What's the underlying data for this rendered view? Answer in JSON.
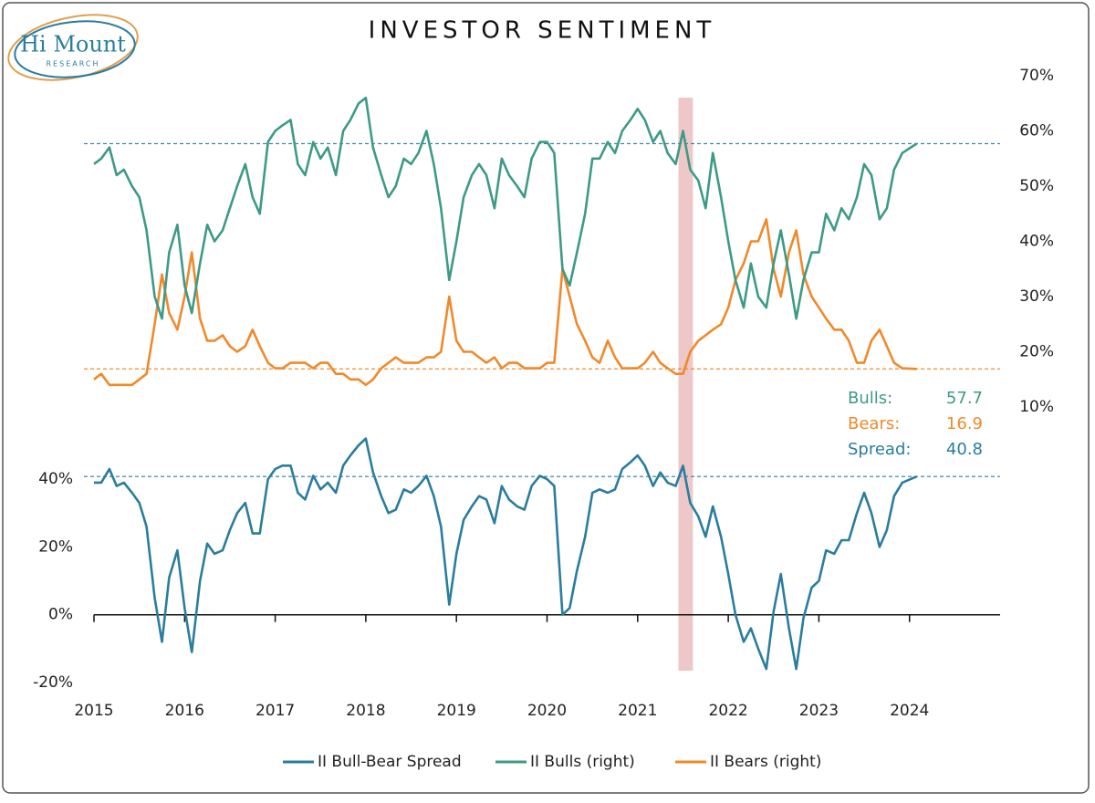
{
  "logo": {
    "name": "Hi Mount",
    "tagline": "RESEARCH"
  },
  "chart_data": {
    "type": "line",
    "title": "INVESTOR SENTIMENT",
    "x": [
      2015.0,
      2015.08,
      2015.17,
      2015.25,
      2015.33,
      2015.42,
      2015.5,
      2015.58,
      2015.67,
      2015.75,
      2015.83,
      2015.92,
      2016.0,
      2016.08,
      2016.17,
      2016.25,
      2016.33,
      2016.42,
      2016.5,
      2016.58,
      2016.67,
      2016.75,
      2016.83,
      2016.92,
      2017.0,
      2017.08,
      2017.17,
      2017.25,
      2017.33,
      2017.42,
      2017.5,
      2017.58,
      2017.67,
      2017.75,
      2017.83,
      2017.92,
      2018.0,
      2018.08,
      2018.17,
      2018.25,
      2018.33,
      2018.42,
      2018.5,
      2018.58,
      2018.67,
      2018.75,
      2018.83,
      2018.92,
      2019.0,
      2019.08,
      2019.17,
      2019.25,
      2019.33,
      2019.42,
      2019.5,
      2019.58,
      2019.67,
      2019.75,
      2019.83,
      2019.92,
      2020.0,
      2020.08,
      2020.17,
      2020.25,
      2020.33,
      2020.42,
      2020.5,
      2020.58,
      2020.67,
      2020.75,
      2020.83,
      2020.92,
      2021.0,
      2021.08,
      2021.17,
      2021.25,
      2021.33,
      2021.42,
      2021.5,
      2021.58,
      2021.67,
      2021.75,
      2021.83,
      2021.92,
      2022.0,
      2022.08,
      2022.17,
      2022.25,
      2022.33,
      2022.42,
      2022.5,
      2022.58,
      2022.67,
      2022.75,
      2022.83,
      2022.92,
      2023.0,
      2023.08,
      2023.17,
      2023.25,
      2023.33,
      2023.42,
      2023.5,
      2023.58,
      2023.67,
      2023.75,
      2023.83,
      2023.92,
      2024.08
    ],
    "series": [
      {
        "name": "II Bull-Bear Spread",
        "color": "#2a7d9e",
        "axis": "y",
        "values": [
          39,
          39,
          43,
          38,
          39,
          36,
          33,
          26,
          5,
          -8,
          11,
          19,
          2,
          -11,
          10,
          21,
          18,
          19,
          25,
          30,
          33,
          24,
          24,
          40,
          43,
          44,
          44,
          36,
          34,
          41,
          37,
          39,
          36,
          44,
          47,
          50,
          52,
          42,
          35,
          30,
          31,
          37,
          36,
          38,
          41,
          35,
          26,
          3,
          18,
          28,
          32,
          35,
          34,
          27,
          38,
          34,
          32,
          31,
          38,
          41,
          40,
          38,
          0,
          2,
          13,
          23,
          36,
          37,
          36,
          37,
          43,
          45,
          47,
          44,
          38,
          42,
          39,
          38,
          44,
          33,
          29,
          23,
          32,
          23,
          12,
          0,
          -8,
          -4,
          -10,
          -16,
          1,
          12,
          -4,
          -16,
          -1,
          8,
          10,
          19,
          18,
          22,
          22,
          30,
          36,
          30,
          20,
          25,
          35,
          39,
          40.8
        ]
      },
      {
        "name": "II Bulls (right)",
        "color": "#3d9a86",
        "axis": "y2",
        "values": [
          54,
          55,
          57,
          52,
          53,
          50,
          48,
          42,
          30,
          26,
          38,
          43,
          32,
          27,
          36,
          43,
          40,
          42,
          46,
          50,
          54,
          48,
          45,
          58,
          60,
          61,
          62,
          54,
          52,
          58,
          55,
          57,
          52,
          60,
          62,
          65,
          66,
          57,
          52,
          48,
          50,
          55,
          54,
          56,
          60,
          54,
          46,
          33,
          40,
          48,
          52,
          54,
          52,
          46,
          55,
          52,
          50,
          48,
          55,
          58,
          58,
          56,
          35,
          32,
          38,
          45,
          55,
          55,
          58,
          56,
          60,
          62,
          64,
          62,
          58,
          60,
          56,
          54,
          60,
          53,
          51,
          46,
          56,
          48,
          40,
          33,
          28,
          36,
          30,
          28,
          36,
          42,
          34,
          26,
          33,
          38,
          38,
          45,
          42,
          46,
          44,
          48,
          54,
          52,
          44,
          46,
          53,
          56,
          57.7
        ]
      },
      {
        "name": "II Bears (right)",
        "color": "#f0892a",
        "axis": "y2",
        "values": [
          15,
          16,
          14,
          14,
          14,
          14,
          15,
          16,
          25,
          34,
          27,
          24,
          30,
          38,
          26,
          22,
          22,
          23,
          21,
          20,
          21,
          24,
          21,
          18,
          17,
          17,
          18,
          18,
          18,
          17,
          18,
          18,
          16,
          16,
          15,
          15,
          14,
          15,
          17,
          18,
          19,
          18,
          18,
          18,
          19,
          19,
          20,
          30,
          22,
          20,
          20,
          19,
          18,
          19,
          17,
          18,
          18,
          17,
          17,
          17,
          18,
          18,
          35,
          30,
          25,
          22,
          19,
          18,
          22,
          19,
          17,
          17,
          17,
          18,
          20,
          18,
          17,
          16,
          16,
          20,
          22,
          23,
          24,
          25,
          28,
          33,
          36,
          40,
          40,
          44,
          35,
          30,
          38,
          42,
          34,
          30,
          28,
          26,
          24,
          24,
          22,
          18,
          18,
          22,
          24,
          21,
          18,
          17,
          16.9
        ]
      }
    ],
    "xlim": [
      2015,
      2025
    ],
    "xticks": [
      2015,
      2016,
      2017,
      2018,
      2019,
      2020,
      2021,
      2022,
      2023,
      2024
    ],
    "ylim": [
      -20,
      50
    ],
    "yticks": [
      {
        "value": -20,
        "label": "-20%"
      },
      {
        "value": 0,
        "label": "0%"
      },
      {
        "value": 20,
        "label": "20%"
      },
      {
        "value": 40,
        "label": "40%"
      }
    ],
    "y2lim": [
      10,
      70
    ],
    "y2ticks": [
      {
        "value": 10,
        "label": "10%"
      },
      {
        "value": 20,
        "label": "20%"
      },
      {
        "value": 30,
        "label": "30%"
      },
      {
        "value": 40,
        "label": "40%"
      },
      {
        "value": 50,
        "label": "50%"
      },
      {
        "value": 60,
        "label": "60%"
      },
      {
        "value": 70,
        "label": "70%"
      }
    ],
    "latest": [
      {
        "label": "Bulls:",
        "value": 57.7,
        "axis": "y2",
        "color": "#3d9a86",
        "line_color": "#2a7d9e"
      },
      {
        "label": "Bears:",
        "value": 16.9,
        "axis": "y2",
        "color": "#f0892a",
        "line_color": "#f0892a"
      },
      {
        "label": "Spread:",
        "value": 40.8,
        "axis": "y",
        "color": "#2a7d9e",
        "line_color": "#2a7d9e"
      }
    ],
    "highlight": {
      "x": [
        2021.45,
        2021.61
      ],
      "color": "#e3a3a3"
    },
    "legend": "bottom"
  }
}
